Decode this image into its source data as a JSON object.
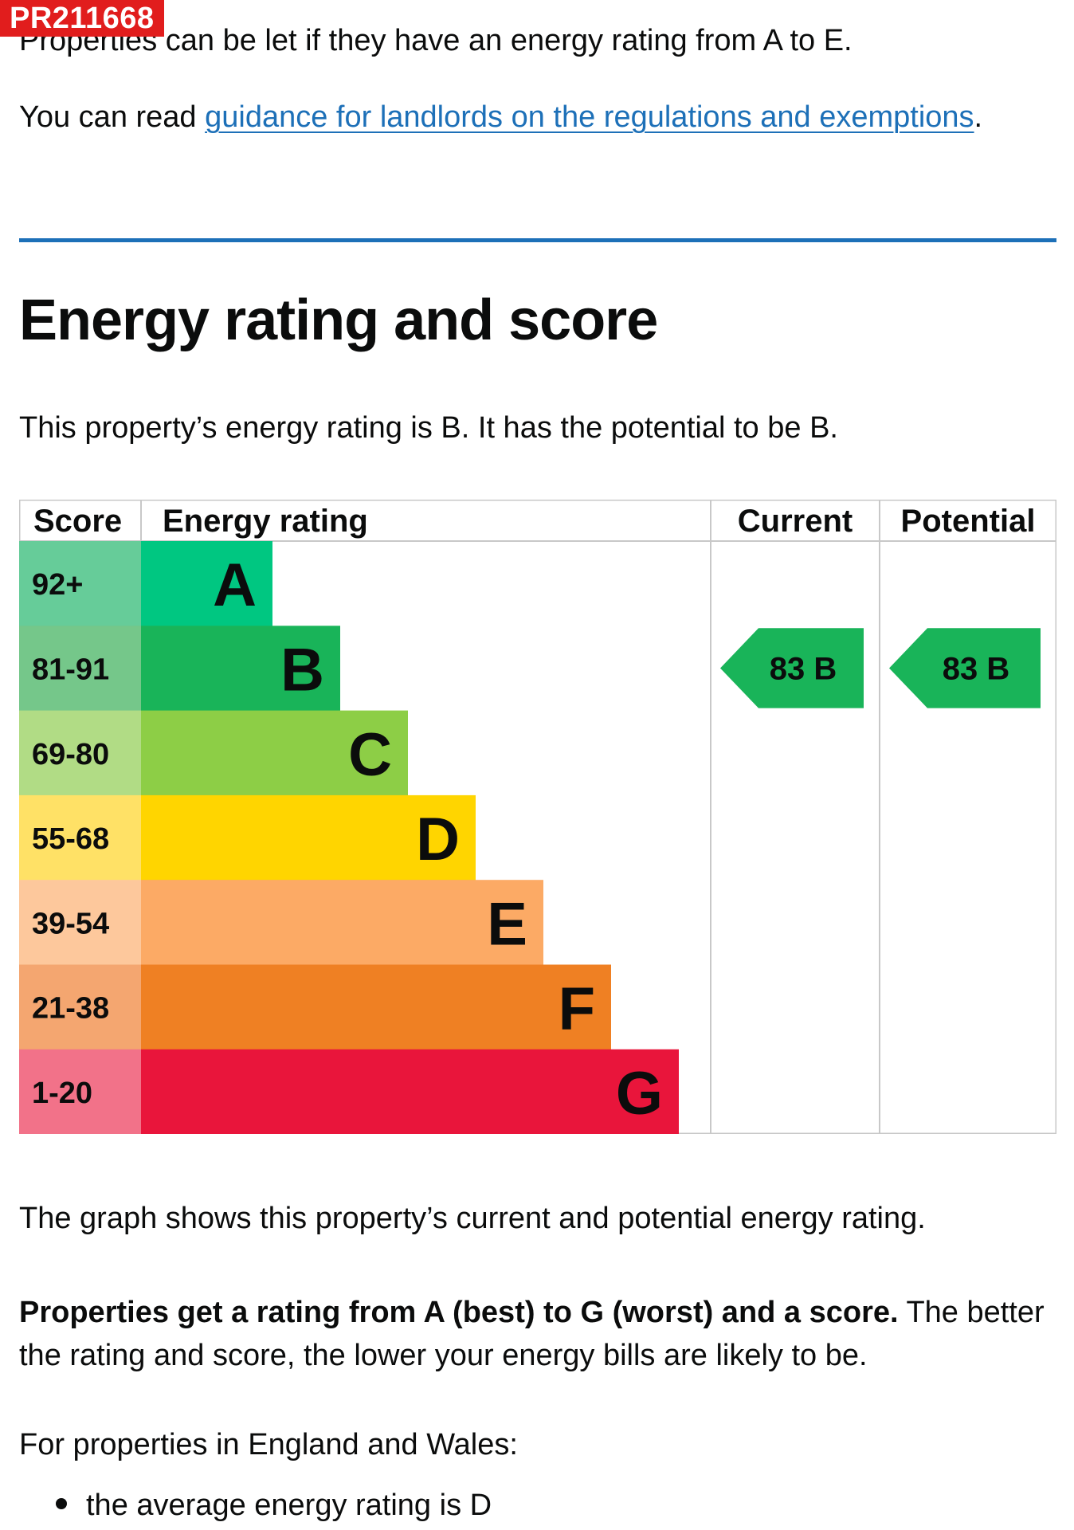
{
  "reference_badge": "PR211668",
  "intro": {
    "let_text": "Properties can be let if they have an energy rating from A to E.",
    "read_prefix": "You can read ",
    "read_link": "guidance for landlords on the regulations and exemptions",
    "read_suffix": "."
  },
  "section": {
    "title": "Energy rating and score",
    "summary": "This property’s energy rating is B. It has the potential to be B."
  },
  "chart_data": {
    "type": "table",
    "headers": {
      "score": "Score",
      "rating": "Energy rating",
      "current": "Current",
      "potential": "Potential"
    },
    "bands": [
      {
        "letter": "A",
        "range": "92+",
        "color": "#00c781",
        "score_color": "#66cc99"
      },
      {
        "letter": "B",
        "range": "81-91",
        "color": "#19b459",
        "score_color": "#75c78a"
      },
      {
        "letter": "C",
        "range": "69-80",
        "color": "#8dce46",
        "score_color": "#b1dc85"
      },
      {
        "letter": "D",
        "range": "55-68",
        "color": "#ffd500",
        "score_color": "#ffe166"
      },
      {
        "letter": "E",
        "range": "39-54",
        "color": "#fcaa65",
        "score_color": "#fdc89c"
      },
      {
        "letter": "F",
        "range": "21-38",
        "color": "#ef8023",
        "score_color": "#f4a670"
      },
      {
        "letter": "G",
        "range": "1-20",
        "color": "#e9153b",
        "score_color": "#f27289"
      }
    ],
    "current": {
      "score": 83,
      "letter": "B",
      "label": "83  B"
    },
    "potential": {
      "score": 83,
      "letter": "B",
      "label": "83  B"
    }
  },
  "after_chart": {
    "graph_text": "The graph shows this property’s current and potential energy rating.",
    "bold_text": "Properties get a rating from A (best) to G (worst) and a score.",
    "rest_text": " The better the rating and score, the lower your energy bills are likely to be.",
    "england_text": "For properties in England and Wales:",
    "bullet_text": "the average energy rating is D"
  },
  "colors": {
    "link": "#1d70b8",
    "text": "#0b0c0c",
    "badge": "#e11d1d"
  }
}
